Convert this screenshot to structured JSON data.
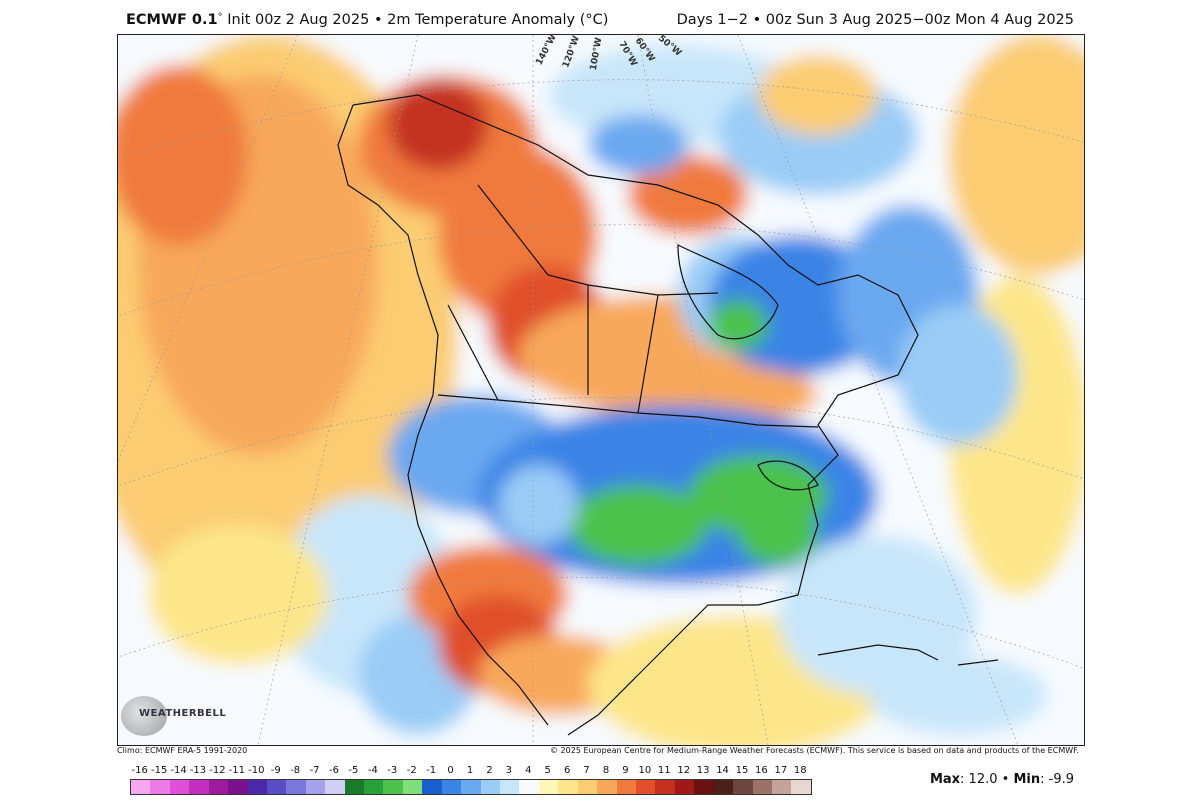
{
  "header": {
    "model": "ECMWF 0.1",
    "deg_mark": "°",
    "init_text": "Init 00z 2 Aug 2025 • 2m Temperature Anomaly (°C)",
    "valid_text": "Days 1−2 • 00z Sun 3 Aug 2025−00z Mon 4 Aug 2025"
  },
  "map": {
    "longitude_labels": [
      "140°W",
      "120°W",
      "100°W",
      "70°W",
      "60°W",
      "50°W"
    ],
    "logo_text": "WEATHERBELL"
  },
  "credits": {
    "climo": "Climo: ECMWF ERA-5 1991-2020",
    "copyright": "© 2025 European Centre for Medium-Range Weather Forecasts (ECMWF). This service is based on data and products of the ECMWF."
  },
  "colorbar": {
    "ticks": [
      "-16",
      "-15",
      "-14",
      "-13",
      "-12",
      "-11",
      "-10",
      "-9",
      "-8",
      "-7",
      "-6",
      "-5",
      "-4",
      "-3",
      "-2",
      "-1",
      "0",
      "1",
      "2",
      "3",
      "4",
      "5",
      "6",
      "7",
      "8",
      "9",
      "10",
      "11",
      "12",
      "13",
      "14",
      "15",
      "16",
      "17",
      "18"
    ],
    "colors": [
      "#f7a8f0",
      "#ee7ce6",
      "#e04fd8",
      "#c42fc0",
      "#a01a9e",
      "#7a1290",
      "#4a2aa8",
      "#5a4ec8",
      "#7a78dc",
      "#a6a2ea",
      "#d2cff5",
      "#1a7a2a",
      "#2aa03a",
      "#4cc24c",
      "#7fe07a",
      "#1a5fd0",
      "#3a84e6",
      "#6aa8f0",
      "#9accf6",
      "#c8e6fa",
      "#f7fbff",
      "#fff8b8",
      "#fde68a",
      "#fbcc72",
      "#f8a85a",
      "#f07a3e",
      "#e0502a",
      "#c43020",
      "#a01818",
      "#6a1010",
      "#4a2018",
      "#6e4640",
      "#9a726a",
      "#c4a49a",
      "#e8d6d0"
    ],
    "max_label": "Max",
    "max_value": ": 12.0 •",
    "min_label": "Min",
    "min_value": ": -9.9"
  }
}
